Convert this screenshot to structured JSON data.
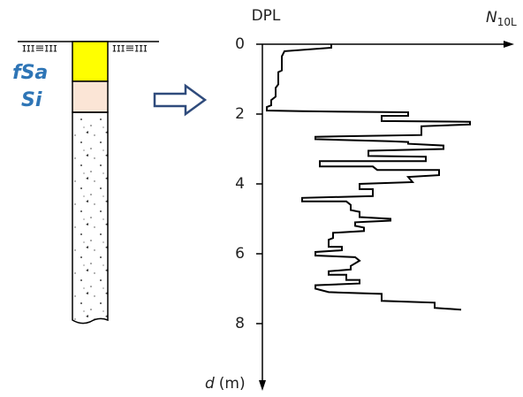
{
  "chart_data": {
    "type": "step-profile",
    "title": "DPL",
    "xlabel": {
      "symbol": "N",
      "subscript": "10L"
    },
    "ylabel": {
      "symbol": "d",
      "unit": "(m)"
    },
    "soil_labels": [
      "fSa",
      "Si"
    ],
    "ylim": [
      0,
      8
    ],
    "yticks": [
      0,
      2,
      4,
      6,
      8
    ],
    "y_inverted": true,
    "xlim": [
      0,
      280
    ],
    "color": "#000000",
    "series": [
      {
        "x": [
          78,
          78,
          25,
          22,
          22,
          18,
          18,
          15,
          15,
          10,
          10,
          5,
          5,
          45,
          165,
          165,
          135,
          135,
          235,
          235,
          180,
          180,
          60,
          60,
          145,
          165,
          165,
          205,
          205,
          120,
          120,
          185,
          185,
          65,
          65,
          125,
          130,
          200,
          200,
          165,
          170,
          110,
          110,
          125,
          125,
          45,
          45,
          95,
          100,
          100,
          110,
          110,
          145,
          145,
          105,
          105,
          115,
          115,
          80,
          80,
          75,
          75,
          90,
          90,
          60,
          60,
          105,
          110,
          100,
          100,
          75,
          75,
          95,
          95,
          110,
          110,
          60,
          60,
          75,
          135,
          135,
          195,
          195,
          225
        ],
        "values": [
          0,
          0.1,
          0.2,
          0.35,
          0.75,
          0.8,
          1.15,
          1.25,
          1.5,
          1.6,
          1.75,
          1.8,
          1.9,
          1.92,
          1.95,
          2.05,
          2.05,
          2.2,
          2.22,
          2.3,
          2.35,
          2.6,
          2.65,
          2.72,
          2.78,
          2.8,
          2.85,
          2.9,
          3.0,
          3.05,
          3.2,
          3.22,
          3.35,
          3.35,
          3.5,
          3.5,
          3.6,
          3.6,
          3.75,
          3.8,
          3.95,
          4.0,
          4.15,
          4.15,
          4.35,
          4.4,
          4.5,
          4.5,
          4.6,
          4.75,
          4.8,
          4.95,
          5.0,
          5.05,
          5.1,
          5.2,
          5.25,
          5.35,
          5.4,
          5.55,
          5.6,
          5.8,
          5.8,
          5.9,
          5.95,
          6.05,
          6.1,
          6.2,
          6.35,
          6.45,
          6.5,
          6.6,
          6.6,
          6.75,
          6.75,
          6.85,
          6.9,
          7.0,
          7.1,
          7.15,
          7.35,
          7.4,
          7.55,
          7.6
        ]
      }
    ]
  }
}
